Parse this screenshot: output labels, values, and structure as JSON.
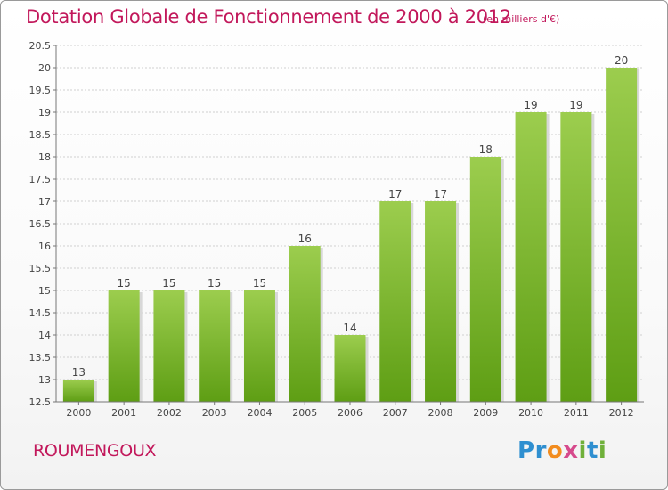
{
  "header": {
    "title": "Dotation Globale de Fonctionnement de 2000 à 2012",
    "unit_note": "(en milliers d'€)"
  },
  "footer": {
    "commune": "ROUMENGOUX",
    "logo_text": "Proxiti"
  },
  "colors": {
    "bar_light": "#9ccd4e",
    "bar_dark": "#5e9e14",
    "title": "#c2185b",
    "axis": "#777777",
    "grid": "#d0d0d0"
  },
  "chart_data": {
    "type": "bar",
    "title": "Dotation Globale de Fonctionnement de 2000 à 2012",
    "subtitle": "(en milliers d'€)",
    "xlabel": "",
    "ylabel": "",
    "categories": [
      "2000",
      "2001",
      "2002",
      "2003",
      "2004",
      "2005",
      "2006",
      "2007",
      "2008",
      "2009",
      "2010",
      "2011",
      "2012"
    ],
    "values": [
      13,
      15,
      15,
      15,
      15,
      16,
      14,
      17,
      17,
      18,
      19,
      19,
      20
    ],
    "value_labels": [
      "13",
      "15",
      "15",
      "15",
      "15",
      "16",
      "14",
      "17",
      "17",
      "18",
      "19",
      "19",
      "20"
    ],
    "ylim": [
      12.5,
      20.5
    ],
    "yticks": [
      12.5,
      13,
      13.5,
      14,
      14.5,
      15,
      15.5,
      16,
      16.5,
      17,
      17.5,
      18,
      18.5,
      19,
      19.5,
      20,
      20.5
    ],
    "ytick_labels": [
      "12.5",
      "13",
      "13.5",
      "14",
      "14.5",
      "15",
      "15.5",
      "16",
      "16.5",
      "17",
      "17.5",
      "18",
      "18.5",
      "19",
      "19.5",
      "20",
      "20.5"
    ],
    "grid": true,
    "legend": "none"
  }
}
